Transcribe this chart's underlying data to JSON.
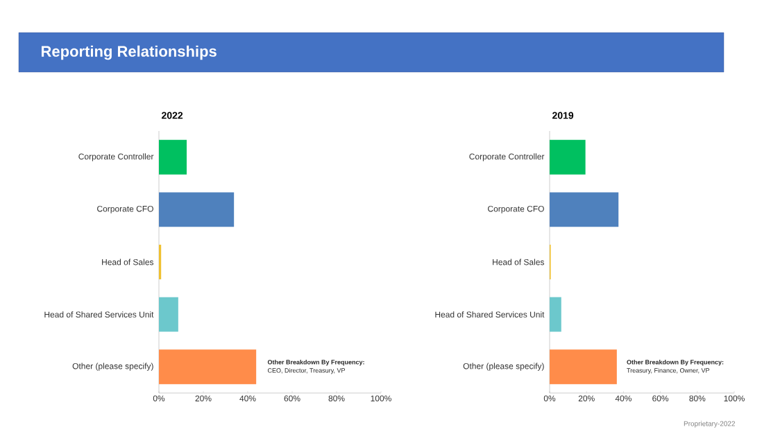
{
  "chart_data": [
    {
      "type": "other",
      "title": "Reporting Relationships"
    },
    {
      "type": "bar",
      "orientation": "horizontal",
      "title": "2022",
      "categories": [
        "Corporate Controller",
        "Corporate CFO",
        "Head of Sales",
        "Head of Shared Services Unit",
        "Other (please specify)"
      ],
      "values": [
        12.5,
        33.8,
        1,
        8.7,
        43.8
      ],
      "colors": [
        "#00c060",
        "#4f81bd",
        "#f0c030",
        "#6cc8cc",
        "#ff8c4a"
      ],
      "xlim": [
        0,
        100
      ],
      "xticks": [
        {
          "value": 0,
          "label": "0%"
        },
        {
          "value": 20,
          "label": "20%"
        },
        {
          "value": 40,
          "label": "40%"
        },
        {
          "value": 60,
          "label": "60%"
        },
        {
          "value": 80,
          "label": "80%"
        },
        {
          "value": 100,
          "label": "100%"
        }
      ],
      "annotations": [
        "Other Breakdown By Frequency:",
        "CEO, Director, Treasury, VP"
      ]
    },
    {
      "type": "bar",
      "orientation": "horizontal",
      "title": "2019",
      "categories": [
        "Corporate Controller",
        "Corporate CFO",
        "Head of Sales",
        "Head of Shared Services Unit",
        "Other (please specify)"
      ],
      "values": [
        19.4,
        37.3,
        0.6,
        6.3,
        36.4
      ],
      "colors": [
        "#00c060",
        "#4f81bd",
        "#f0c030",
        "#6cc8cc",
        "#ff8c4a"
      ],
      "xlim": [
        0,
        100
      ],
      "xticks": [
        {
          "value": 0,
          "label": "0%"
        },
        {
          "value": 20,
          "label": "20%"
        },
        {
          "value": 40,
          "label": "40%"
        },
        {
          "value": 60,
          "label": "60%"
        },
        {
          "value": 80,
          "label": "80%"
        },
        {
          "value": 100,
          "label": "100%"
        }
      ],
      "annotations": [
        "Other Breakdown By Frequency:",
        "Treasury, Finance, Owner, VP",
        "Proprietary-2022"
      ]
    }
  ]
}
